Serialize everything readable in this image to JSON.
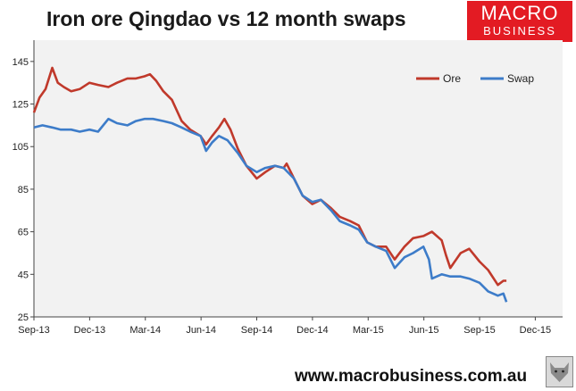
{
  "header": {
    "title": "Iron ore Qingdao vs 12 month swaps",
    "logo_line1": "MACRO",
    "logo_line2": "BUSINESS"
  },
  "footer": {
    "url": "www.macrobusiness.com.au"
  },
  "colors": {
    "ore": "#c0392b",
    "swap": "#3d7cc9",
    "plot_bg": "#f2f2f2",
    "logo_bg": "#e31b23"
  },
  "icons": {
    "logo_mark": "wolf-icon"
  },
  "chart_data": {
    "type": "line",
    "title": "Iron ore Qingdao vs 12 month swaps",
    "xlabel": "",
    "ylabel": "",
    "ylim": [
      25,
      155
    ],
    "yticks": [
      25,
      45,
      65,
      85,
      105,
      125,
      145
    ],
    "xticks": [
      "Sep-13",
      "Dec-13",
      "Mar-14",
      "Jun-14",
      "Sep-14",
      "Dec-14",
      "Mar-15",
      "Jun-15",
      "Sep-15",
      "Dec-15"
    ],
    "grid": false,
    "legend": "top-right",
    "series": [
      {
        "name": "Ore",
        "x": [
          "2013-09-01",
          "2013-09-10",
          "2013-09-20",
          "2013-10-01",
          "2013-10-10",
          "2013-10-20",
          "2013-11-01",
          "2013-11-15",
          "2013-12-01",
          "2013-12-15",
          "2014-01-01",
          "2014-01-15",
          "2014-02-01",
          "2014-02-15",
          "2014-03-01",
          "2014-03-10",
          "2014-03-20",
          "2014-04-01",
          "2014-04-15",
          "2014-05-01",
          "2014-05-15",
          "2014-06-01",
          "2014-06-10",
          "2014-06-20",
          "2014-07-01",
          "2014-07-10",
          "2014-07-20",
          "2014-08-01",
          "2014-08-15",
          "2014-09-01",
          "2014-09-15",
          "2014-10-01",
          "2014-10-15",
          "2014-10-20",
          "2014-11-01",
          "2014-11-15",
          "2014-12-01",
          "2014-12-15",
          "2015-01-01",
          "2015-01-15",
          "2015-02-01",
          "2015-02-15",
          "2015-03-01",
          "2015-03-15",
          "2015-04-01",
          "2015-04-15",
          "2015-05-01",
          "2015-05-15",
          "2015-06-01",
          "2015-06-15",
          "2015-07-01",
          "2015-07-08",
          "2015-07-15",
          "2015-08-01",
          "2015-08-15",
          "2015-09-01",
          "2015-09-15",
          "2015-10-01",
          "2015-10-10",
          "2015-10-15"
        ],
        "values": [
          121,
          128,
          132,
          142,
          135,
          133,
          131,
          132,
          135,
          134,
          133,
          135,
          137,
          137,
          138,
          139,
          136,
          131,
          127,
          117,
          113,
          110,
          106,
          110,
          114,
          118,
          113,
          104,
          96,
          90,
          93,
          96,
          95,
          97,
          90,
          82,
          78,
          80,
          76,
          72,
          70,
          68,
          60,
          58,
          58,
          52,
          58,
          62,
          63,
          65,
          61,
          54,
          48,
          55,
          57,
          51,
          47,
          40,
          42,
          42
        ]
      },
      {
        "name": "Swap",
        "x": [
          "2013-09-01",
          "2013-09-15",
          "2013-10-01",
          "2013-10-15",
          "2013-11-01",
          "2013-11-15",
          "2013-12-01",
          "2013-12-15",
          "2014-01-01",
          "2014-01-15",
          "2014-02-01",
          "2014-02-15",
          "2014-03-01",
          "2014-03-15",
          "2014-04-01",
          "2014-04-15",
          "2014-05-01",
          "2014-05-15",
          "2014-06-01",
          "2014-06-10",
          "2014-06-20",
          "2014-07-01",
          "2014-07-15",
          "2014-08-01",
          "2014-08-15",
          "2014-09-01",
          "2014-09-15",
          "2014-10-01",
          "2014-10-15",
          "2014-11-01",
          "2014-11-15",
          "2014-12-01",
          "2014-12-15",
          "2015-01-01",
          "2015-01-15",
          "2015-02-01",
          "2015-02-15",
          "2015-03-01",
          "2015-03-15",
          "2015-04-01",
          "2015-04-15",
          "2015-05-01",
          "2015-05-15",
          "2015-06-01",
          "2015-06-10",
          "2015-06-15",
          "2015-07-01",
          "2015-07-15",
          "2015-08-01",
          "2015-08-15",
          "2015-09-01",
          "2015-09-15",
          "2015-10-01",
          "2015-10-10",
          "2015-10-15"
        ],
        "values": [
          114,
          115,
          114,
          113,
          113,
          112,
          113,
          112,
          118,
          116,
          115,
          117,
          118,
          118,
          117,
          116,
          114,
          112,
          110,
          103,
          107,
          110,
          108,
          102,
          96,
          93,
          95,
          96,
          95,
          90,
          82,
          79,
          80,
          75,
          70,
          68,
          66,
          60,
          58,
          56,
          48,
          53,
          55,
          58,
          52,
          43,
          45,
          44,
          44,
          43,
          41,
          37,
          35,
          36,
          32
        ]
      }
    ]
  }
}
